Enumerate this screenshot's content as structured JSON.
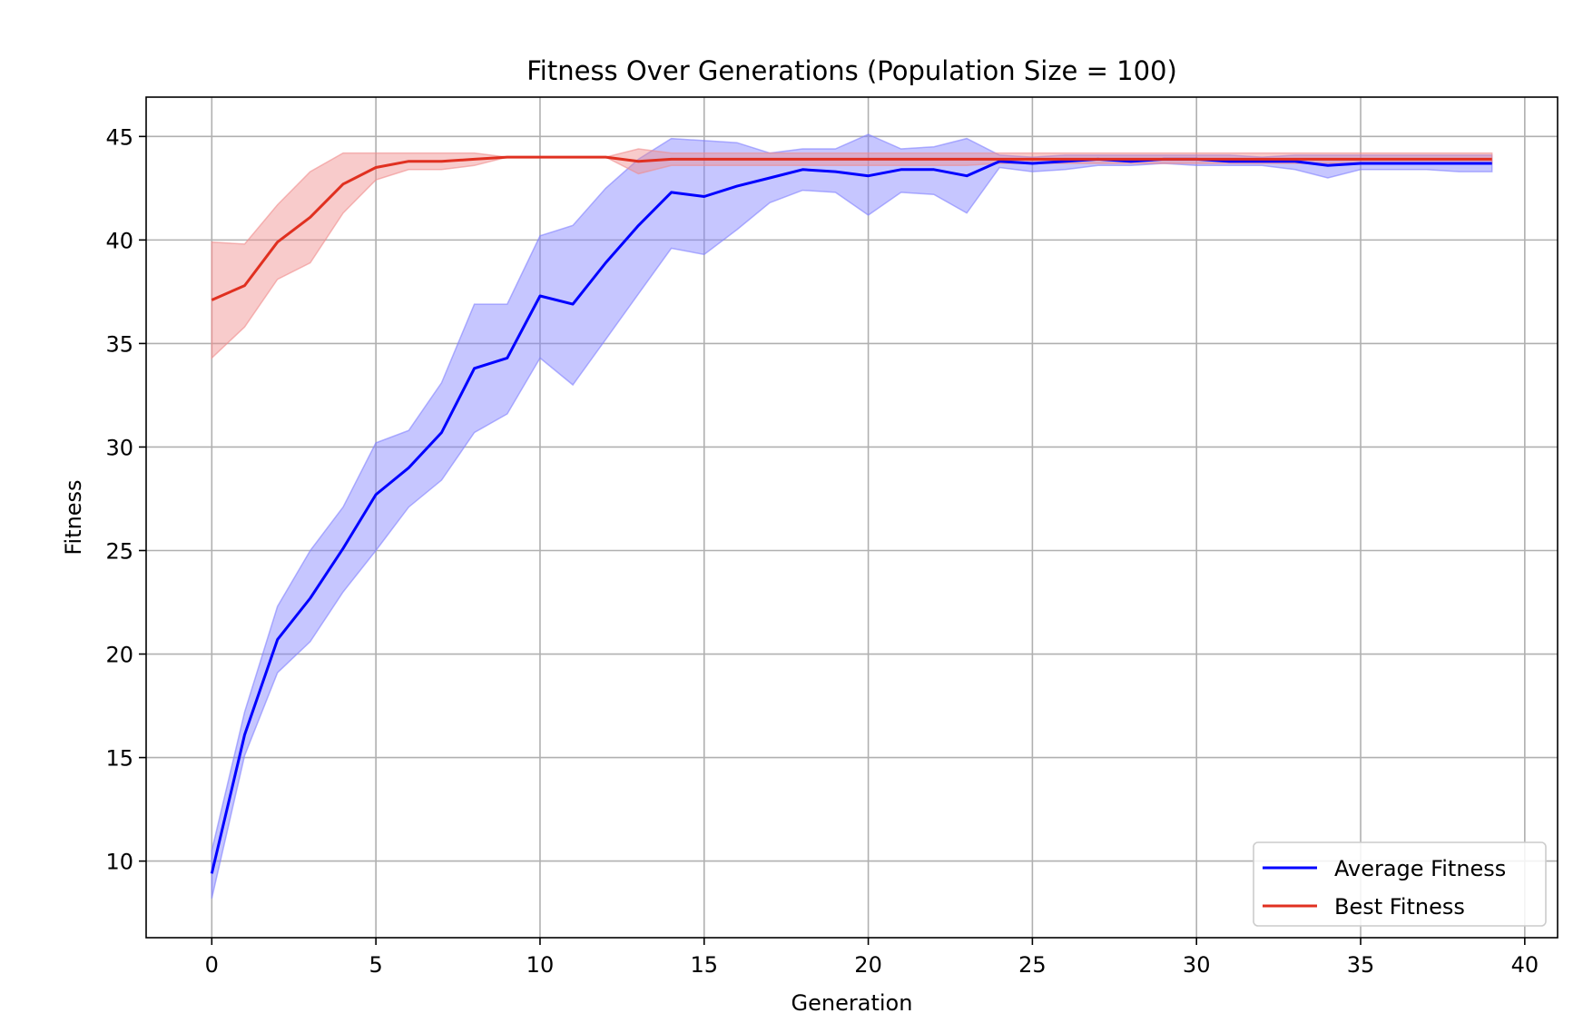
{
  "chart_data": {
    "type": "line",
    "title": "Fitness Over Generations (Population Size = 100)",
    "xlabel": "Generation",
    "ylabel": "Fitness",
    "xlim": [
      -2,
      41
    ],
    "ylim": [
      6.3,
      46.9
    ],
    "xticks": [
      0,
      5,
      10,
      15,
      20,
      25,
      30,
      35,
      40
    ],
    "yticks": [
      10,
      15,
      20,
      25,
      30,
      35,
      40,
      45
    ],
    "grid": true,
    "legend_position": "lower right",
    "x": [
      0,
      1,
      2,
      3,
      4,
      5,
      6,
      7,
      8,
      9,
      10,
      11,
      12,
      13,
      14,
      15,
      16,
      17,
      18,
      19,
      20,
      21,
      22,
      23,
      24,
      25,
      26,
      27,
      28,
      29,
      30,
      31,
      32,
      33,
      34,
      35,
      36,
      37,
      38,
      39
    ],
    "series": [
      {
        "name": "Average Fitness",
        "color": "#0000ff",
        "band_color": "#8080ff",
        "values": [
          9.4,
          16.1,
          20.7,
          22.7,
          25.1,
          27.7,
          29.0,
          30.7,
          33.8,
          34.3,
          37.3,
          36.9,
          38.9,
          40.7,
          42.3,
          42.1,
          42.6,
          43.0,
          43.4,
          43.3,
          43.1,
          43.4,
          43.4,
          43.1,
          43.8,
          43.7,
          43.8,
          43.9,
          43.8,
          43.9,
          43.9,
          43.8,
          43.8,
          43.8,
          43.6,
          43.7,
          43.7,
          43.7,
          43.7,
          43.7
        ],
        "lower": [
          8.2,
          15.1,
          19.1,
          20.6,
          23.0,
          25.0,
          27.1,
          28.4,
          30.7,
          31.6,
          34.3,
          33.0,
          35.2,
          37.4,
          39.6,
          39.3,
          40.5,
          41.8,
          42.4,
          42.3,
          41.2,
          42.3,
          42.2,
          41.3,
          43.5,
          43.3,
          43.4,
          43.6,
          43.6,
          43.7,
          43.6,
          43.6,
          43.6,
          43.4,
          43.0,
          43.4,
          43.4,
          43.4,
          43.3,
          43.3
        ],
        "upper": [
          10.5,
          17.2,
          22.3,
          25.0,
          27.1,
          30.2,
          30.8,
          33.1,
          36.9,
          36.9,
          40.2,
          40.7,
          42.5,
          43.9,
          44.9,
          44.8,
          44.7,
          44.2,
          44.4,
          44.4,
          45.1,
          44.4,
          44.5,
          44.9,
          44.1,
          44.0,
          44.1,
          44.1,
          44.1,
          44.1,
          44.1,
          44.1,
          44.0,
          44.1,
          44.1,
          44.1,
          44.1,
          44.1,
          44.1,
          44.1
        ]
      },
      {
        "name": "Best Fitness",
        "color": "#e03020",
        "band_color": "#f08c8c",
        "values": [
          37.1,
          37.8,
          39.9,
          41.1,
          42.7,
          43.5,
          43.8,
          43.8,
          43.9,
          44.0,
          44.0,
          44.0,
          44.0,
          43.8,
          43.9,
          43.9,
          43.9,
          43.9,
          43.9,
          43.9,
          43.9,
          43.9,
          43.9,
          43.9,
          43.9,
          43.9,
          43.9,
          43.9,
          43.9,
          43.9,
          43.9,
          43.9,
          43.9,
          43.9,
          43.9,
          43.9,
          43.9,
          43.9,
          43.9,
          43.9
        ],
        "lower": [
          34.3,
          35.8,
          38.1,
          38.9,
          41.3,
          42.9,
          43.4,
          43.4,
          43.6,
          44.0,
          44.0,
          44.0,
          44.0,
          43.2,
          43.6,
          43.6,
          43.6,
          43.6,
          43.6,
          43.6,
          43.6,
          43.6,
          43.6,
          43.6,
          43.7,
          43.7,
          43.7,
          43.7,
          43.7,
          43.7,
          43.7,
          43.7,
          43.7,
          43.7,
          43.7,
          43.7,
          43.7,
          43.7,
          43.7,
          43.7
        ],
        "upper": [
          39.9,
          39.8,
          41.7,
          43.3,
          44.2,
          44.2,
          44.2,
          44.2,
          44.2,
          44.0,
          44.0,
          44.0,
          44.0,
          44.4,
          44.2,
          44.2,
          44.2,
          44.2,
          44.2,
          44.2,
          44.2,
          44.2,
          44.2,
          44.2,
          44.2,
          44.2,
          44.2,
          44.2,
          44.2,
          44.2,
          44.2,
          44.2,
          44.2,
          44.2,
          44.2,
          44.2,
          44.2,
          44.2,
          44.2,
          44.2
        ]
      }
    ]
  }
}
